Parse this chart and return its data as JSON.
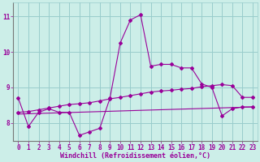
{
  "xlabel": "Windchill (Refroidissement éolien,°C)",
  "bg_color": "#cceee8",
  "grid_color": "#99cccc",
  "line_color": "#990099",
  "line1_x": [
    0,
    1,
    2,
    3,
    4,
    5,
    6,
    7,
    8,
    9,
    10,
    11,
    12,
    13,
    14,
    15,
    16,
    17,
    18,
    19,
    20,
    21,
    22,
    23
  ],
  "line1_y": [
    8.7,
    7.9,
    8.3,
    8.4,
    8.3,
    8.3,
    7.65,
    7.75,
    7.85,
    8.7,
    10.25,
    10.9,
    11.05,
    9.6,
    9.65,
    9.65,
    9.55,
    9.55,
    9.1,
    9.0,
    8.2,
    8.4,
    8.45,
    8.45
  ],
  "line2_x": [
    0,
    1,
    2,
    3,
    4,
    5,
    6,
    7,
    8,
    9,
    10,
    11,
    12,
    13,
    14,
    15,
    16,
    17,
    18,
    19,
    20,
    21,
    22,
    23
  ],
  "line2_y": [
    8.3,
    8.32,
    8.37,
    8.42,
    8.47,
    8.52,
    8.54,
    8.57,
    8.62,
    8.68,
    8.72,
    8.77,
    8.82,
    8.87,
    8.9,
    8.92,
    8.95,
    8.97,
    9.02,
    9.05,
    9.08,
    9.05,
    8.72,
    8.72
  ],
  "line3_x": [
    0,
    23
  ],
  "line3_y": [
    8.25,
    8.45
  ],
  "ylim": [
    7.5,
    11.4
  ],
  "xlim": [
    -0.5,
    23.5
  ],
  "yticks": [
    8,
    9,
    10,
    11
  ],
  "xticks": [
    0,
    1,
    2,
    3,
    4,
    5,
    6,
    7,
    8,
    9,
    10,
    11,
    12,
    13,
    14,
    15,
    16,
    17,
    18,
    19,
    20,
    21,
    22,
    23
  ]
}
